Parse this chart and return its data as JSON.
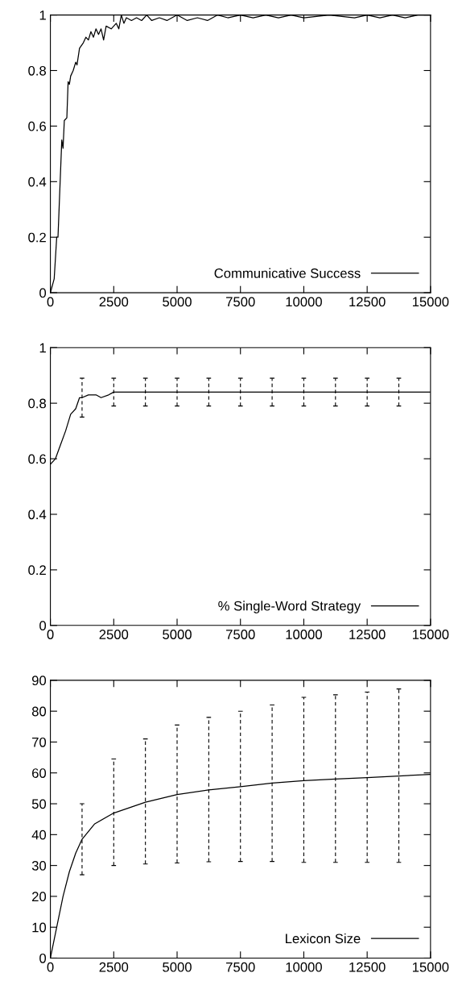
{
  "chart_data": [
    {
      "type": "line",
      "x": [
        0,
        150,
        250,
        300,
        450,
        500,
        550,
        650,
        700,
        750,
        800,
        900,
        1000,
        1050,
        1150,
        1300,
        1400,
        1500,
        1600,
        1700,
        1800,
        1900,
        2000,
        2100,
        2200,
        2400,
        2600,
        2700,
        2800,
        2900,
        3000,
        3200,
        3400,
        3600,
        3800,
        4000,
        4300,
        4600,
        5000,
        5400,
        5800,
        6200,
        6600,
        7000,
        7500,
        8000,
        8500,
        9000,
        9500,
        10000,
        11000,
        12000,
        12500,
        13000,
        13500,
        14000,
        14500,
        15000
      ],
      "series": [
        {
          "name": "Communicative Success",
          "color": "#000000",
          "values": [
            0,
            0.05,
            0.2,
            0.2,
            0.55,
            0.52,
            0.62,
            0.63,
            0.76,
            0.75,
            0.78,
            0.8,
            0.83,
            0.82,
            0.88,
            0.9,
            0.92,
            0.91,
            0.94,
            0.92,
            0.95,
            0.93,
            0.95,
            0.91,
            0.96,
            0.95,
            0.97,
            0.95,
            1.0,
            0.97,
            0.99,
            0.98,
            0.99,
            0.98,
            1.0,
            0.98,
            0.99,
            0.98,
            1.0,
            0.98,
            0.99,
            0.98,
            1.0,
            0.99,
            1.0,
            0.99,
            1.0,
            0.99,
            1.0,
            0.99,
            1.0,
            0.99,
            1.0,
            0.99,
            1.0,
            0.99,
            1.0,
            1.0
          ]
        }
      ],
      "xlim": [
        0,
        15000
      ],
      "xticks": [
        0,
        2500,
        5000,
        7500,
        10000,
        12500,
        15000
      ],
      "ylim": [
        0,
        1
      ],
      "yticks": [
        0,
        0.2,
        0.4,
        0.6,
        0.8,
        1
      ],
      "legend": "bottom right",
      "grid": false
    },
    {
      "type": "line",
      "x": [
        0,
        200,
        400,
        600,
        800,
        1000,
        1150,
        1250,
        1500,
        1800,
        2000,
        2300,
        2500,
        3750,
        5000,
        6250,
        7500,
        8750,
        10000,
        11250,
        12500,
        13750,
        15000
      ],
      "series": [
        {
          "name": "% Single-Word Strategy",
          "color": "#000000",
          "values": [
            0.58,
            0.6,
            0.65,
            0.7,
            0.76,
            0.78,
            0.82,
            0.82,
            0.83,
            0.83,
            0.82,
            0.83,
            0.84,
            0.84,
            0.84,
            0.84,
            0.84,
            0.84,
            0.84,
            0.84,
            0.84,
            0.84,
            0.84
          ],
          "errors": [
            null,
            null,
            null,
            null,
            null,
            null,
            null,
            [
              0.75,
              0.89
            ],
            null,
            null,
            null,
            null,
            [
              0.79,
              0.89
            ],
            [
              0.79,
              0.89
            ],
            [
              0.79,
              0.89
            ],
            [
              0.79,
              0.89
            ],
            [
              0.79,
              0.89
            ],
            [
              0.79,
              0.89
            ],
            [
              0.79,
              0.89
            ],
            [
              0.79,
              0.89
            ],
            [
              0.79,
              0.89
            ],
            [
              0.79,
              0.89
            ],
            null
          ]
        }
      ],
      "xlim": [
        0,
        15000
      ],
      "xticks": [
        0,
        2500,
        5000,
        7500,
        10000,
        12500,
        15000
      ],
      "ylim": [
        0,
        1
      ],
      "yticks": [
        0,
        0.2,
        0.4,
        0.6,
        0.8,
        1
      ],
      "legend": "bottom right",
      "grid": false
    },
    {
      "type": "line",
      "x": [
        0,
        250,
        500,
        750,
        1000,
        1250,
        1750,
        2500,
        3750,
        5000,
        6250,
        7500,
        8750,
        10000,
        11250,
        12500,
        13750,
        15000
      ],
      "series": [
        {
          "name": "Lexicon Size",
          "color": "#000000",
          "values": [
            0,
            10,
            20,
            28,
            34,
            38.5,
            43.5,
            47,
            50.5,
            53,
            54.5,
            55.5,
            56.7,
            57.5,
            58,
            58.5,
            59,
            59.5
          ],
          "errors": [
            null,
            null,
            null,
            null,
            null,
            [
              27,
              50
            ],
            null,
            [
              30,
              64.5
            ],
            [
              30.5,
              71
            ],
            [
              30.8,
              75.5
            ],
            [
              31.2,
              78
            ],
            [
              31.3,
              80
            ],
            [
              31.3,
              82
            ],
            [
              31,
              84.5
            ],
            [
              31,
              85.3
            ],
            [
              31,
              86.2
            ],
            [
              31,
              87.2
            ],
            null
          ]
        }
      ],
      "xlim": [
        0,
        15000
      ],
      "xticks": [
        0,
        2500,
        5000,
        7500,
        10000,
        12500,
        15000
      ],
      "ylim": [
        0,
        90
      ],
      "yticks": [
        0,
        10,
        20,
        30,
        40,
        50,
        60,
        70,
        80,
        90
      ],
      "legend": "bottom right",
      "grid": false
    }
  ]
}
